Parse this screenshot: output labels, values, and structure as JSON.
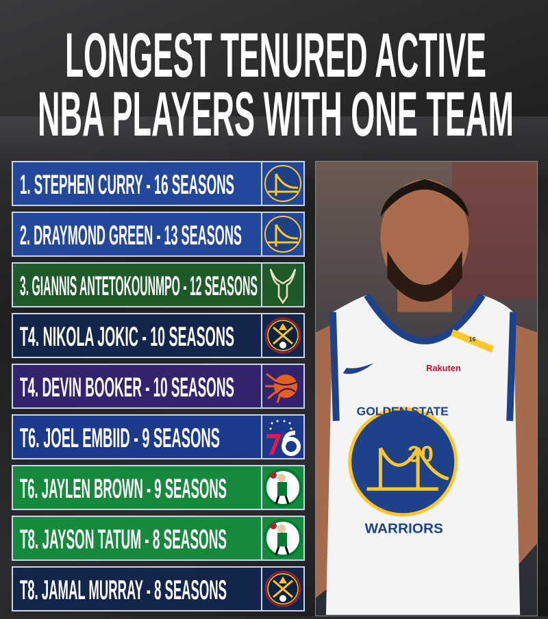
{
  "title": {
    "line1": "LONGEST TENURED ACTIVE",
    "line2": "NBA PLAYERS WITH ONE TEAM"
  },
  "players": [
    {
      "label": "1. STEPHEN CURRY - 16 SEASONS",
      "team_logo": "warriors-logo",
      "color": "#22479b"
    },
    {
      "label": "2. DRAYMOND GREEN - 13 SEASONS",
      "team_logo": "warriors-logo",
      "color": "#22479b"
    },
    {
      "label": "3. GIANNIS ANTETOKOUNMPO - 12 SEASONS",
      "team_logo": "bucks-logo",
      "color": "#1f5a2b"
    },
    {
      "label": "T4. NIKOLA JOKIC - 10 SEASONS",
      "team_logo": "nuggets-logo",
      "color": "#13254a"
    },
    {
      "label": "T4. DEVIN BOOKER - 10 SEASONS",
      "team_logo": "suns-logo",
      "color": "#33236f"
    },
    {
      "label": "T6. JOEL EMBIID - 9 SEASONS",
      "team_logo": "sixers-logo",
      "color": "#1c3a8c"
    },
    {
      "label": "T6. JAYLEN BROWN - 9 SEASONS",
      "team_logo": "celtics-logo",
      "color": "#168a3c"
    },
    {
      "label": "T8. JAYSON TATUM - 8 SEASONS",
      "team_logo": "celtics-logo",
      "color": "#168a3c"
    },
    {
      "label": "T8. JAMAL MURRAY - 8 SEASONS",
      "team_logo": "nuggets-logo",
      "color": "#13254a"
    }
  ],
  "photo": {
    "sponsor": "Rakuten",
    "jersey_text": "GOLDEN STATE",
    "jersey_text_bottom": "WARRIORS",
    "number": "30",
    "strap_number": "16"
  }
}
